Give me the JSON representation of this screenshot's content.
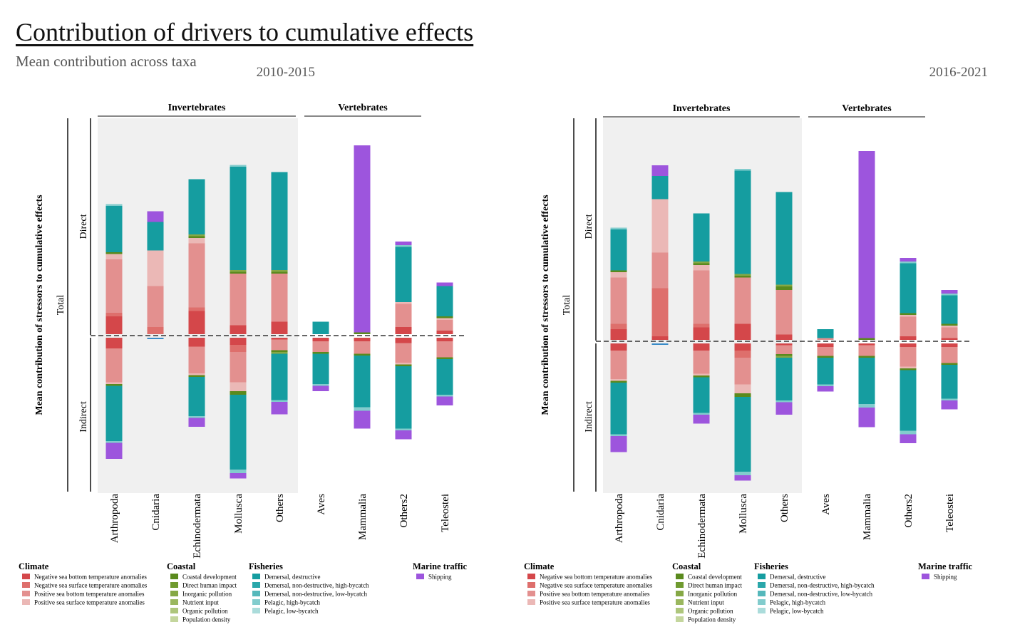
{
  "title": "Contribution of drivers to cumulative effects",
  "subtitle": "Mean contribution across taxa",
  "ylabel": "Mean contribution of stressors to cumulative effects",
  "axis_labels": {
    "total": "Total",
    "direct": "Direct",
    "indirect": "Indirect"
  },
  "groups": {
    "invertebrates": "Invertebrates",
    "vertebrates": "Vertebrates"
  },
  "taxa": [
    "Arthropoda",
    "Cnidaria",
    "Echinodermata",
    "Mollusca",
    "Others",
    "Aves",
    "Mammalia",
    "Others2",
    "Teleostei"
  ],
  "colors": {
    "nsbt": "#d4474a",
    "nsst": "#de6f6c",
    "psbt": "#e3908f",
    "psst": "#ebb8b6",
    "coastal_dev": "#5a8a1d",
    "direct_human": "#6f9a2f",
    "inorganic": "#85a845",
    "nutrient": "#9ab75e",
    "organic": "#aec67c",
    "popdensity": "#c4d69d",
    "dem_destr": "#159da0",
    "dem_nd_hb": "#2aa7aa",
    "dem_nd_lb": "#55b8bb",
    "pel_hb": "#82cccd",
    "pel_lb": "#abdcdb",
    "shipping": "#9d55dd"
  },
  "legend": [
    {
      "title": "Climate",
      "items": [
        {
          "key": "nsbt",
          "label": "Negative sea bottom temperature anomalies"
        },
        {
          "key": "nsst",
          "label": "Negative sea surface temperature anomalies"
        },
        {
          "key": "psbt",
          "label": "Positive sea bottom temperature anomalies"
        },
        {
          "key": "psst",
          "label": "Positive sea surface temperature anomalies"
        }
      ]
    },
    {
      "title": "Coastal",
      "items": [
        {
          "key": "coastal_dev",
          "label": "Coastal development"
        },
        {
          "key": "direct_human",
          "label": "Direct human impact"
        },
        {
          "key": "inorganic",
          "label": "Inorganic pollution"
        },
        {
          "key": "nutrient",
          "label": "Nutrient input"
        },
        {
          "key": "organic",
          "label": "Organic pollution"
        },
        {
          "key": "popdensity",
          "label": "Population density"
        }
      ]
    },
    {
      "title": "Fisheries",
      "items": [
        {
          "key": "dem_destr",
          "label": "Demersal, destructive"
        },
        {
          "key": "dem_nd_hb",
          "label": "Demersal, non-destructive, high-bycatch"
        },
        {
          "key": "dem_nd_lb",
          "label": "Demersal, non-destructive, low-bycatch"
        },
        {
          "key": "pel_hb",
          "label": "Pelagic, high-bycatch"
        },
        {
          "key": "pel_lb",
          "label": "Pelagic, low-bycatch"
        }
      ]
    },
    {
      "title": "Marine traffic",
      "items": [
        {
          "key": "shipping",
          "label": "Shipping"
        }
      ]
    }
  ],
  "chart_data": [
    {
      "type": "bar",
      "title": "2010-2015",
      "series_order": [
        "nsbt",
        "nsst",
        "psbt",
        "psst",
        "coastal_dev",
        "direct_human",
        "inorganic",
        "nutrient",
        "organic",
        "popdensity",
        "dem_destr",
        "dem_nd_hb",
        "dem_nd_lb",
        "pel_hb",
        "pel_lb",
        "shipping"
      ],
      "direct": [
        {
          "taxon": "Arthropoda",
          "segments": {
            "nsbt": 0.1,
            "nsst": 0.02,
            "psbt": 0.3,
            "psst": 0.03,
            "coastal_dev": 0.01,
            "dem_destr": 0.26,
            "pel_hb": 0.01
          }
        },
        {
          "taxon": "Cnidaria",
          "segments": {
            "nsst": 0.04,
            "psbt": 0.23,
            "psst": 0.2,
            "psst_light": 0,
            "nsbt": 0,
            "dem_destr": 0.16,
            "shipping": 0.06
          }
        },
        {
          "taxon": "Echinodermata",
          "segments": {
            "nsbt": 0.13,
            "nsst": 0.02,
            "psbt": 0.36,
            "psst": 0.03,
            "coastal_dev": 0.01,
            "inorganic": 0.01,
            "dem_destr": 0.31
          }
        },
        {
          "taxon": "Mollusca",
          "segments": {
            "nsbt": 0.05,
            "psbt": 0.29,
            "coastal_dev": 0.01,
            "inorganic": 0.01,
            "dem_destr": 0.58,
            "pel_hb": 0.01
          }
        },
        {
          "taxon": "Others",
          "segments": {
            "nsbt": 0.07,
            "psbt": 0.27,
            "coastal_dev": 0.01,
            "inorganic": 0.01,
            "dem_destr": 0.55
          }
        },
        {
          "taxon": "Aves",
          "segments": {
            "dem_destr": 0.07
          }
        },
        {
          "taxon": "Mammalia",
          "segments": {
            "coastal_dev": 0.01,
            "shipping": 1.05
          }
        },
        {
          "taxon": "Others2",
          "segments": {
            "nsbt": 0.04,
            "psbt": 0.13,
            "psst": 0.01,
            "dem_destr": 0.31,
            "pel_hb": 0.01,
            "shipping": 0.02
          }
        },
        {
          "taxon": "Teleostei",
          "segments": {
            "nsbt": 0.02,
            "psbt": 0.06,
            "psst": 0.01,
            "coastal_dev": 0.01,
            "dem_destr": 0.17,
            "shipping": 0.02
          }
        }
      ],
      "negative": [
        {
          "taxon": "Cnidaria",
          "segments": {
            "dem_nd_hb": 0.01
          }
        }
      ],
      "indirect": [
        {
          "taxon": "Arthropoda",
          "segments": {
            "nsbt": 0.06,
            "psbt": 0.19,
            "psst": 0.01,
            "coastal_dev": 0.01,
            "dem_destr": 0.31,
            "pel_hb": 0.01,
            "shipping": 0.09
          }
        },
        {
          "taxon": "Cnidaria",
          "segments": {}
        },
        {
          "taxon": "Echinodermata",
          "segments": {
            "nsbt": 0.05,
            "psbt": 0.15,
            "psst": 0.01,
            "coastal_dev": 0.01,
            "dem_destr": 0.22,
            "pel_hb": 0.01,
            "shipping": 0.05
          }
        },
        {
          "taxon": "Mollusca",
          "segments": {
            "nsbt": 0.04,
            "nsst": 0.04,
            "psbt": 0.17,
            "psst": 0.05,
            "coastal_dev": 0.02,
            "dem_destr": 0.42,
            "pel_hb": 0.02,
            "shipping": 0.03
          }
        },
        {
          "taxon": "Others",
          "segments": {
            "nsbt": 0.01,
            "psbt": 0.06,
            "coastal_dev": 0.01,
            "inorganic": 0.01,
            "dem_destr": 0.26,
            "pel_hb": 0.01,
            "shipping": 0.07
          }
        },
        {
          "taxon": "Aves",
          "segments": {
            "nsbt": 0.02,
            "psbt": 0.06,
            "coastal_dev": 0.01,
            "dem_destr": 0.17,
            "pel_hb": 0.01,
            "shipping": 0.03
          }
        },
        {
          "taxon": "Mammalia",
          "segments": {
            "nsbt": 0.02,
            "psbt": 0.07,
            "coastal_dev": 0.01,
            "dem_destr": 0.29,
            "pel_hb": 0.02,
            "shipping": 0.1
          }
        },
        {
          "taxon": "Others2",
          "segments": {
            "nsbt": 0.03,
            "psbt": 0.11,
            "psst": 0.01,
            "coastal_dev": 0.01,
            "dem_destr": 0.35,
            "pel_hb": 0.01,
            "shipping": 0.05
          }
        },
        {
          "taxon": "Teleostei",
          "segments": {
            "nsbt": 0.02,
            "psbt": 0.09,
            "coastal_dev": 0.01,
            "dem_destr": 0.2,
            "pel_hb": 0.01,
            "shipping": 0.05
          }
        }
      ]
    },
    {
      "type": "bar",
      "title": "2016-2021",
      "series_order": [
        "nsbt",
        "nsst",
        "psbt",
        "psst",
        "coastal_dev",
        "direct_human",
        "inorganic",
        "nutrient",
        "organic",
        "popdensity",
        "dem_destr",
        "dem_nd_hb",
        "dem_nd_lb",
        "pel_hb",
        "pel_lb",
        "shipping"
      ],
      "direct": [
        {
          "taxon": "Arthropoda",
          "segments": {
            "nsbt": 0.06,
            "nsst": 0.03,
            "psbt": 0.26,
            "psst": 0.03,
            "coastal_dev": 0.01,
            "dem_destr": 0.23,
            "pel_hb": 0.01
          }
        },
        {
          "taxon": "Cnidaria",
          "segments": {
            "nsbt": 0.02,
            "nsst": 0.27,
            "psbt": 0.2,
            "psst": 0.3,
            "dem_destr": 0.13,
            "shipping": 0.06
          }
        },
        {
          "taxon": "Echinodermata",
          "segments": {
            "nsbt": 0.07,
            "nsst": 0.02,
            "psbt": 0.3,
            "psst": 0.03,
            "coastal_dev": 0.01,
            "inorganic": 0.01,
            "dem_destr": 0.27
          }
        },
        {
          "taxon": "Mollusca",
          "segments": {
            "nsbt": 0.09,
            "nsst": 0.0,
            "psbt": 0.26,
            "coastal_dev": 0.01,
            "inorganic": 0.01,
            "dem_destr": 0.58,
            "pel_hb": 0.01
          }
        },
        {
          "taxon": "Others",
          "segments": {
            "nsbt": 0.03,
            "psbt": 0.25,
            "coastal_dev": 0.02,
            "inorganic": 0.01,
            "dem_destr": 0.52
          }
        },
        {
          "taxon": "Aves",
          "segments": {
            "psbt": 0.01,
            "dem_destr": 0.05
          }
        },
        {
          "taxon": "Mammalia",
          "segments": {
            "coastal_dev": 0.01,
            "shipping": 1.05
          }
        },
        {
          "taxon": "Others2",
          "segments": {
            "nsbt": 0.02,
            "psbt": 0.11,
            "psst": 0.01,
            "coastal_dev": 0.01,
            "dem_destr": 0.28,
            "pel_hb": 0.01,
            "shipping": 0.02
          }
        },
        {
          "taxon": "Teleostei",
          "segments": {
            "nsbt": 0.01,
            "psbt": 0.06,
            "psst": 0.01,
            "coastal_dev": 0.01,
            "dem_destr": 0.16,
            "pel_hb": 0.01,
            "shipping": 0.02
          }
        }
      ],
      "negative": [
        {
          "taxon": "Cnidaria",
          "segments": {
            "dem_nd_hb": 0.01
          }
        }
      ],
      "indirect": [
        {
          "taxon": "Arthropoda",
          "segments": {
            "nsbt": 0.04,
            "psbt": 0.16,
            "psst": 0.01,
            "coastal_dev": 0.01,
            "dem_destr": 0.29,
            "pel_hb": 0.01,
            "shipping": 0.09
          }
        },
        {
          "taxon": "Cnidaria",
          "segments": {}
        },
        {
          "taxon": "Echinodermata",
          "segments": {
            "nsbt": 0.04,
            "psbt": 0.13,
            "psst": 0.01,
            "coastal_dev": 0.01,
            "dem_destr": 0.2,
            "pel_hb": 0.01,
            "shipping": 0.05
          }
        },
        {
          "taxon": "Mollusca",
          "segments": {
            "nsbt": 0.04,
            "nsst": 0.04,
            "psbt": 0.15,
            "psst": 0.05,
            "coastal_dev": 0.02,
            "dem_destr": 0.42,
            "pel_hb": 0.02,
            "shipping": 0.03
          }
        },
        {
          "taxon": "Others",
          "segments": {
            "nsbt": 0.01,
            "psbt": 0.05,
            "coastal_dev": 0.01,
            "inorganic": 0.01,
            "dem_destr": 0.24,
            "pel_hb": 0.01,
            "shipping": 0.07
          }
        },
        {
          "taxon": "Aves",
          "segments": {
            "nsbt": 0.02,
            "psbt": 0.05,
            "coastal_dev": 0.01,
            "dem_destr": 0.15,
            "pel_hb": 0.01,
            "shipping": 0.03
          }
        },
        {
          "taxon": "Mammalia",
          "segments": {
            "nsbt": 0.01,
            "psbt": 0.06,
            "coastal_dev": 0.01,
            "dem_destr": 0.26,
            "pel_hb": 0.02,
            "shipping": 0.11
          }
        },
        {
          "taxon": "Others2",
          "segments": {
            "nsbt": 0.02,
            "psbt": 0.11,
            "psst": 0.01,
            "coastal_dev": 0.01,
            "dem_destr": 0.34,
            "pel_hb": 0.02,
            "shipping": 0.05
          }
        },
        {
          "taxon": "Teleostei",
          "segments": {
            "nsbt": 0.02,
            "psbt": 0.09,
            "coastal_dev": 0.01,
            "dem_destr": 0.19,
            "pel_hb": 0.01,
            "shipping": 0.05
          }
        }
      ]
    }
  ]
}
